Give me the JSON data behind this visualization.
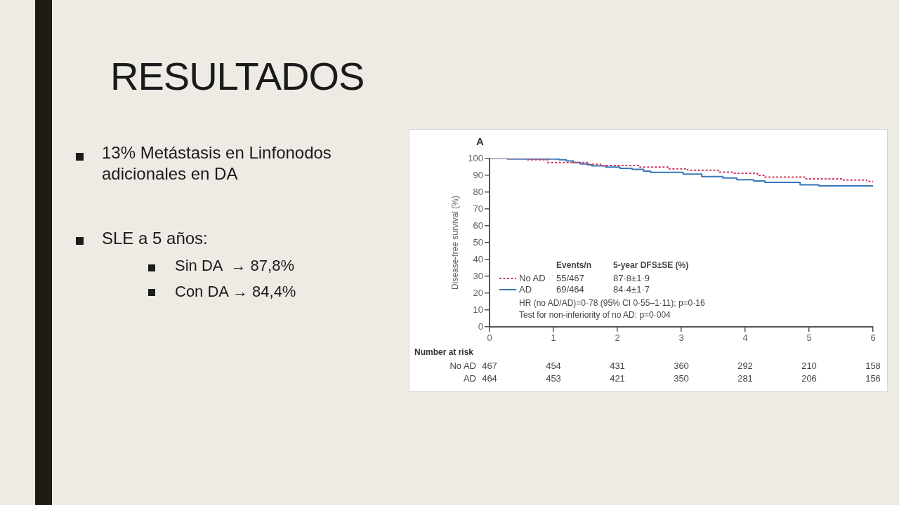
{
  "chart_data": {
    "type": "step",
    "title": "RESULTADOS",
    "ylabel": "Disease-free survival (%)",
    "annotations": [
      "13% Metástasis en Linfonodos adicionales en DA",
      "SLE a 5 años:",
      "Sin DA  → 87,8%",
      "Con DA → 84,4%",
      "A",
      "Events/n",
      "5-year DFS±SE (%)",
      "55/467",
      "87·8±1·9",
      "69/464",
      "84·4±1·7",
      "HR (no AD/AD)=0·78 (95% CI 0·55–1·11); p=0·16",
      "Test for non-inferiority of no AD: p=0·004",
      "Number at risk",
      "467",
      "454",
      "431",
      "360",
      "292",
      "210",
      "158",
      "464",
      "453",
      "421",
      "350",
      "281",
      "206",
      "156"
    ],
    "series": [
      {
        "name": "No AD",
        "color": "#cc3a5c",
        "line_style": "dotted",
        "x": [
          0,
          0.58,
          0.91,
          1.53,
          1.74,
          2.34,
          2.81,
          3.1,
          3.58,
          3.8,
          4.19,
          4.31,
          4.93,
          5.52,
          5.9,
          6
        ],
        "values": [
          100,
          99.3,
          97.6,
          96.6,
          95.8,
          94.9,
          93.9,
          93.0,
          91.9,
          91.3,
          90.0,
          89.0,
          87.9,
          87.2,
          86.4,
          86.0
        ]
      },
      {
        "name": "AD",
        "color": "#3778b8",
        "line_style": "solid",
        "x": [
          0,
          0.28,
          1.09,
          1.2,
          1.31,
          1.42,
          1.53,
          1.6,
          1.82,
          2.04,
          2.23,
          2.41,
          2.52,
          3.03,
          3.32,
          3.65,
          3.87,
          4.13,
          4.31,
          4.86,
          5.15,
          6
        ],
        "values": [
          100,
          99.7,
          99.3,
          98.5,
          97.6,
          96.8,
          96.2,
          95.6,
          94.9,
          94.2,
          93.5,
          92.5,
          91.8,
          90.7,
          89.3,
          88.4,
          87.4,
          86.7,
          85.8,
          84.4,
          83.8,
          83.8
        ]
      }
    ],
    "xlim": [
      0,
      6
    ],
    "xticks": [
      0,
      1,
      2,
      3,
      4,
      5,
      6
    ],
    "ylim": [
      0,
      100
    ],
    "yticks": [
      0,
      10,
      20,
      30,
      40,
      50,
      60,
      70,
      80,
      90,
      100
    ],
    "legend": "bottom left",
    "marker": "none"
  }
}
